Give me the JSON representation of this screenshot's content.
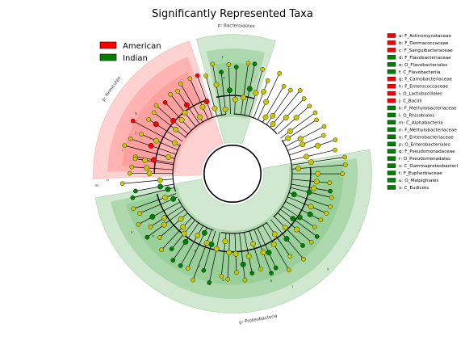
{
  "chart_data": {
    "type": "cladogram",
    "title": "Significantly Represented Taxa",
    "legend": [
      {
        "name": "American",
        "color": "#ff0000"
      },
      {
        "name": "Indian",
        "color": "#008000"
      }
    ],
    "clades": [
      {
        "label": "p: Bacteroidetes",
        "group": "Indian",
        "start_deg": 255,
        "end_deg": 288
      },
      {
        "label": "p: Firmicutes",
        "group": "American",
        "start_deg": 178,
        "end_deg": 252
      },
      {
        "label": "p: Proteobacteria",
        "group": "Indian",
        "start_deg": 350,
        "end_deg": 530
      }
    ],
    "sector_labels": [
      {
        "text": "f",
        "angle_deg": 265,
        "r_frac": 0.82
      },
      {
        "text": "e",
        "angle_deg": 265,
        "r_frac": 0.68
      },
      {
        "text": "h",
        "angle_deg": 212,
        "r_frac": 0.8
      },
      {
        "text": "j",
        "angle_deg": 203,
        "r_frac": 0.74
      },
      {
        "text": "i",
        "angle_deg": 192,
        "r_frac": 0.79
      },
      {
        "text": "k",
        "angle_deg": 430,
        "r_frac": 0.8
      },
      {
        "text": "l",
        "angle_deg": 422,
        "r_frac": 0.9
      },
      {
        "text": "r",
        "angle_deg": 370,
        "r_frac": 0.66
      },
      {
        "text": "s",
        "angle_deg": 405,
        "r_frac": 0.95
      },
      {
        "text": "o",
        "angle_deg": 455,
        "r_frac": 0.75
      },
      {
        "text": "p",
        "angle_deg": 470,
        "r_frac": 0.69
      },
      {
        "text": "q",
        "angle_deg": 476,
        "r_frac": 0.6
      },
      {
        "text": "u",
        "angle_deg": 510,
        "r_frac": 0.82
      },
      {
        "text": "v",
        "angle_deg": 502,
        "r_frac": 0.71
      },
      {
        "text": "n",
        "angle_deg": 537,
        "r_frac": 0.88
      },
      {
        "text": "m",
        "angle_deg": 535,
        "r_frac": 0.96
      }
    ],
    "key_entries": [
      {
        "label": "a: F_Actinomycetaceae",
        "group": "American"
      },
      {
        "label": "b: F_Dermacoccaceae",
        "group": "American"
      },
      {
        "label": "c: F_Sanguibacteraceae",
        "group": "American"
      },
      {
        "label": "d: F_Flavobacteriaceae",
        "group": "Indian"
      },
      {
        "label": "e: O_Flavobacteriales",
        "group": "Indian"
      },
      {
        "label": "f: C_Flavobacteriia",
        "group": "Indian"
      },
      {
        "label": "g: F_Carnobacteriaceae",
        "group": "American"
      },
      {
        "label": "h: F_Enterococcaceae",
        "group": "American"
      },
      {
        "label": "i: O_Lactobacillales",
        "group": "American"
      },
      {
        "label": "j: C_Bacilli",
        "group": "American"
      },
      {
        "label": "k: F_Methylobacteriaceae",
        "group": "Indian"
      },
      {
        "label": "l: O_Rhizobiales",
        "group": "Indian"
      },
      {
        "label": "m: C_Alphabacteria",
        "group": "Indian"
      },
      {
        "label": "n: F_Methylobacteriaceae",
        "group": "Indian"
      },
      {
        "label": "o: F_Enterobacteriaceae",
        "group": "Indian"
      },
      {
        "label": "p: O_Enterobacteriales",
        "group": "Indian"
      },
      {
        "label": "q: F_Pseudomonadaceae",
        "group": "Indian"
      },
      {
        "label": "r: O_Pseudomonadales",
        "group": "Indian"
      },
      {
        "label": "s: C_Gammaproteobacteri",
        "group": "Indian"
      },
      {
        "label": "t: F_Euphorbiaceae",
        "group": "Indian"
      },
      {
        "label": "u: O_Malpighiales",
        "group": "Indian"
      },
      {
        "label": "v: C_Eudicots",
        "group": "Indian"
      }
    ],
    "colors": {
      "american": "#ff0000",
      "indian": "#008000",
      "american_fill": "#ff6b6b",
      "indian_fill": "#5fb35f",
      "node_default": "#c8c800"
    }
  }
}
